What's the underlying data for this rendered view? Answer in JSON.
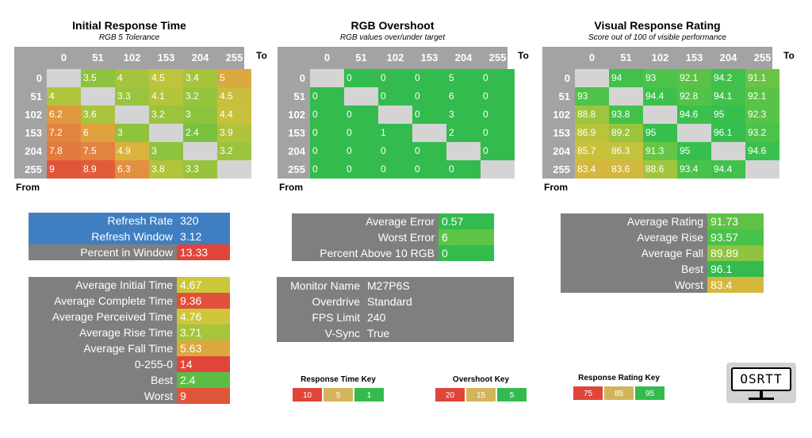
{
  "colors": {
    "gray": "#7f7f7f",
    "header_gray": "#a3a3a3",
    "diag_gray": "#d4d4d4",
    "blue": "#3f7fc1",
    "red": "#e0453a",
    "green": "#33bb4e",
    "yellow": "#d4cf3a"
  },
  "chart_data": [
    {
      "type": "heatmap",
      "title": "Initial Response Time",
      "subtitle": "RGB 5 Tolerance",
      "to_label": "To",
      "from_label": "From",
      "columns": [
        "0",
        "51",
        "102",
        "153",
        "204",
        "255"
      ],
      "rows": [
        "0",
        "51",
        "102",
        "153",
        "204",
        "255"
      ],
      "values": [
        [
          null,
          "3.5",
          "4",
          "4.5",
          "3.4",
          "5"
        ],
        [
          "4",
          null,
          "3.3",
          "4.1",
          "3.2",
          "4.5"
        ],
        [
          "6.2",
          "3.6",
          null,
          "3.2",
          "3",
          "4.4"
        ],
        [
          "7.2",
          "6",
          "3",
          null,
          "2.4",
          "3.9"
        ],
        [
          "7.8",
          "7.5",
          "4.9",
          "3",
          null,
          "3.2"
        ],
        [
          "9",
          "8.9",
          "6.3",
          "3.8",
          "3.3",
          null
        ]
      ],
      "colors": [
        [
          null,
          "#8dc33f",
          "#a5c43d",
          "#bfc43c",
          "#a5c43c",
          "#dba73f"
        ],
        [
          "#b1c43d",
          null,
          "#9ac43d",
          "#b5c43d",
          "#95c43d",
          "#c9bd3e"
        ],
        [
          "#e19640",
          "#a9c43c",
          null,
          "#9cc33d",
          "#8ec33e",
          "#c7c03c"
        ],
        [
          "#e1853f",
          "#e0a23f",
          "#8ec33e",
          null,
          "#7ac13f",
          "#b1c33d"
        ],
        [
          "#e27a3e",
          "#e2833f",
          "#d9b33e",
          "#8ec33e",
          null,
          "#9bc43d"
        ],
        [
          "#e0553a",
          "#e15d3a",
          "#e28f40",
          "#b1c43c",
          "#9ac33d",
          null
        ]
      ]
    },
    {
      "type": "heatmap",
      "title": "RGB Overshoot",
      "subtitle": "RGB values over/under target",
      "to_label": "To",
      "from_label": "From",
      "columns": [
        "0",
        "51",
        "102",
        "153",
        "204",
        "255"
      ],
      "rows": [
        "0",
        "51",
        "102",
        "153",
        "204",
        "255"
      ],
      "values": [
        [
          null,
          "0",
          "0",
          "0",
          "5",
          "0"
        ],
        [
          "0",
          null,
          "0",
          "0",
          "6",
          "0"
        ],
        [
          "0",
          "0",
          null,
          "0",
          "3",
          "0"
        ],
        [
          "0",
          "0",
          "1",
          null,
          "2",
          "0"
        ],
        [
          "0",
          "0",
          "0",
          "0",
          null,
          "0"
        ],
        [
          "0",
          "0",
          "0",
          "0",
          "0",
          null
        ]
      ],
      "colors": [
        [
          null,
          "#33bb4e",
          "#33bb4e",
          "#33bb4e",
          "#33bb4e",
          "#33bb4e"
        ],
        [
          "#33bb4e",
          null,
          "#33bb4e",
          "#33bb4e",
          "#33bb4e",
          "#33bb4e"
        ],
        [
          "#33bb4e",
          "#33bb4e",
          null,
          "#33bb4e",
          "#33bb4e",
          "#33bb4e"
        ],
        [
          "#33bb4e",
          "#33bb4e",
          "#33bb4e",
          null,
          "#33bb4e",
          "#33bb4e"
        ],
        [
          "#33bb4e",
          "#33bb4e",
          "#33bb4e",
          "#33bb4e",
          null,
          "#33bb4e"
        ],
        [
          "#33bb4e",
          "#33bb4e",
          "#33bb4e",
          "#33bb4e",
          "#33bb4e",
          null
        ]
      ]
    },
    {
      "type": "heatmap",
      "title": "Visual Response Rating",
      "subtitle": "Score out of 100 of visible performance",
      "to_label": "To",
      "from_label": "From",
      "columns": [
        "0",
        "51",
        "102",
        "153",
        "204",
        "255"
      ],
      "rows": [
        "0",
        "51",
        "102",
        "153",
        "204",
        "255"
      ],
      "values": [
        [
          null,
          "94",
          "93",
          "92.1",
          "94.2",
          "91.1"
        ],
        [
          "93",
          null,
          "94.4",
          "92.8",
          "94.1",
          "92.1"
        ],
        [
          "88.8",
          "93.8",
          null,
          "94.6",
          "95",
          "92.3"
        ],
        [
          "86.9",
          "89.2",
          "95",
          null,
          "96.1",
          "93.2"
        ],
        [
          "85.7",
          "86.3",
          "91.3",
          "95",
          null,
          "94.6"
        ],
        [
          "83.4",
          "83.6",
          "88.6",
          "93.4",
          "94.4",
          null
        ]
      ],
      "colors": [
        [
          null,
          "#41c14a",
          "#4ec34a",
          "#5ac347",
          "#3fc14b",
          "#6bc446"
        ],
        [
          "#4ec34a",
          null,
          "#3cc14c",
          "#52c349",
          "#41c14b",
          "#5ac347"
        ],
        [
          "#9ec53d",
          "#43c24b",
          null,
          "#3ac04d",
          "#37bf4e",
          "#57c348"
        ],
        [
          "#b9c33c",
          "#98c53d",
          "#37bf4e",
          null,
          "#35bd4e",
          "#4bc24a"
        ],
        [
          "#c9c13c",
          "#c3c23c",
          "#66c446",
          "#37bf4e",
          null,
          "#3ac04d"
        ],
        [
          "#d6b73e",
          "#d3b83e",
          "#a3c53e",
          "#47c24a",
          "#3fc14b",
          null
        ]
      ]
    }
  ],
  "response_stats_top": [
    {
      "label": "Refresh Rate",
      "value": "320",
      "label_color": "#3f7fc1",
      "value_color": "#3f7fc1"
    },
    {
      "label": "Refresh Window",
      "value": "3.12",
      "label_color": "#3f7fc1",
      "value_color": "#3f7fc1"
    },
    {
      "label": "Percent in Window",
      "value": "13.33",
      "label_color": "#7f7f7f",
      "value_color": "#e0453a"
    }
  ],
  "response_stats_bottom": [
    {
      "label": "Average Initial Time",
      "value": "4.67",
      "value_color": "#ccc73a"
    },
    {
      "label": "Average Complete Time",
      "value": "9.36",
      "value_color": "#e0503a"
    },
    {
      "label": "Average Perceived Time",
      "value": "4.76",
      "value_color": "#cdc63b"
    },
    {
      "label": "Average Rise Time",
      "value": "3.71",
      "value_color": "#a6c43c"
    },
    {
      "label": "Average Fall Time",
      "value": "5.63",
      "value_color": "#dba73f"
    },
    {
      "label": "0-255-0",
      "value": "14",
      "value_color": "#e0453a"
    },
    {
      "label": "Best",
      "value": "2.4",
      "value_color": "#5cbd45"
    },
    {
      "label": "Worst",
      "value": "9",
      "value_color": "#e0553a"
    }
  ],
  "overshoot_stats": [
    {
      "label": "Average Error",
      "value": "0.57",
      "value_color": "#33bb4e"
    },
    {
      "label": "Worst Error",
      "value": "6",
      "value_color": "#5cc546"
    },
    {
      "label": "Percent Above 10 RGB",
      "value": "0",
      "value_color": "#33bb4e"
    }
  ],
  "monitor_info": [
    {
      "label": "Monitor Name",
      "value": "M27P6S"
    },
    {
      "label": "Overdrive",
      "value": "Standard"
    },
    {
      "label": "FPS Limit",
      "value": "240"
    },
    {
      "label": "V-Sync",
      "value": "True"
    }
  ],
  "rating_stats": [
    {
      "label": "Average Rating",
      "value": "91.73",
      "value_color": "#5fc247"
    },
    {
      "label": "Average Rise",
      "value": "93.57",
      "value_color": "#47c24a"
    },
    {
      "label": "Average Fall",
      "value": "89.89",
      "value_color": "#8ec43f"
    },
    {
      "label": "Best",
      "value": "96.1",
      "value_color": "#33bb4e"
    },
    {
      "label": "Worst",
      "value": "83.4",
      "value_color": "#d6b73e"
    }
  ],
  "keys": [
    {
      "title": "Response Time Key",
      "cells": [
        {
          "v": "10",
          "c": "#e0453a"
        },
        {
          "v": "5",
          "c": "#d4b45a"
        },
        {
          "v": "1",
          "c": "#33bb4e"
        }
      ]
    },
    {
      "title": "Overshoot Key",
      "cells": [
        {
          "v": "20",
          "c": "#e0453a"
        },
        {
          "v": "15",
          "c": "#d4b45a"
        },
        {
          "v": "5",
          "c": "#33bb4e"
        }
      ]
    },
    {
      "title": "Response Rating Key",
      "cells": [
        {
          "v": "75",
          "c": "#e0453a"
        },
        {
          "v": "85",
          "c": "#d4b45a"
        },
        {
          "v": "95",
          "c": "#33bb4e"
        }
      ]
    }
  ],
  "logo": {
    "text": "OSRTT"
  }
}
